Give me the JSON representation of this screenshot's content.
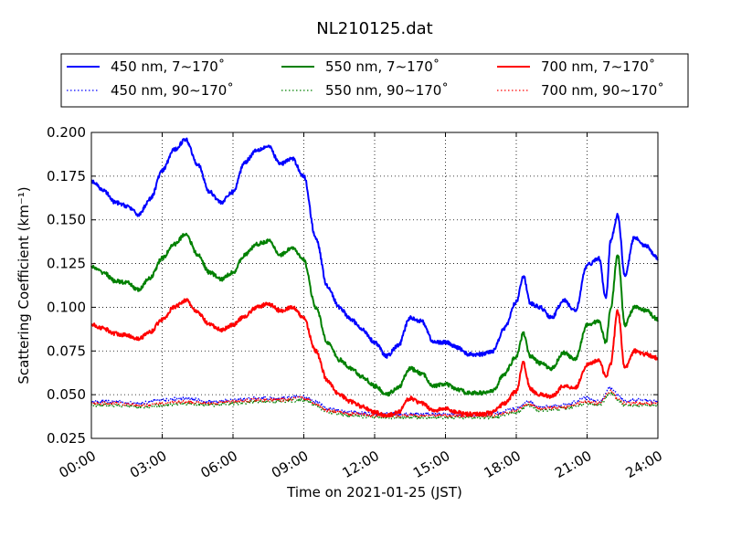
{
  "chart_data": {
    "type": "line",
    "title": "NL210125.dat",
    "xlabel": "Time on 2021-01-25 (JST)",
    "ylabel": "Scattering Coefficient (km⁻¹)",
    "xlim": [
      0,
      24
    ],
    "ylim": [
      0.025,
      0.2
    ],
    "xticks": [
      0,
      3,
      6,
      9,
      12,
      15,
      18,
      21,
      24
    ],
    "xtick_labels": [
      "00:00",
      "03:00",
      "06:00",
      "09:00",
      "12:00",
      "15:00",
      "18:00",
      "21:00",
      "24:00"
    ],
    "yticks": [
      0.025,
      0.05,
      0.075,
      0.1,
      0.125,
      0.15,
      0.175,
      0.2
    ],
    "ytick_labels": [
      "0.025",
      "0.050",
      "0.075",
      "0.100",
      "0.125",
      "0.150",
      "0.175",
      "0.200"
    ],
    "grid": true,
    "legend_position": "top",
    "series": [
      {
        "name": "450 nm, 7∼170˚",
        "color": "#0000ff",
        "style": "solid",
        "x": [
          0,
          0.5,
          1,
          1.5,
          2,
          2.5,
          3,
          3.5,
          4,
          4.5,
          5,
          5.5,
          6,
          6.5,
          7,
          7.5,
          8,
          8.5,
          9,
          9.5,
          10,
          10.5,
          11,
          11.5,
          12,
          12.5,
          13,
          13.5,
          14,
          14.5,
          15,
          15.5,
          16,
          16.5,
          17,
          17.5,
          18,
          18.3,
          18.6,
          19,
          19.5,
          20,
          20.5,
          21,
          21.5,
          21.8,
          22,
          22.3,
          22.6,
          23,
          23.5,
          24
        ],
        "y": [
          0.172,
          0.167,
          0.16,
          0.158,
          0.153,
          0.162,
          0.178,
          0.19,
          0.196,
          0.182,
          0.166,
          0.16,
          0.166,
          0.183,
          0.19,
          0.192,
          0.182,
          0.185,
          0.175,
          0.14,
          0.112,
          0.1,
          0.093,
          0.087,
          0.08,
          0.072,
          0.078,
          0.094,
          0.092,
          0.08,
          0.08,
          0.077,
          0.073,
          0.073,
          0.075,
          0.088,
          0.103,
          0.118,
          0.102,
          0.1,
          0.094,
          0.104,
          0.098,
          0.124,
          0.128,
          0.105,
          0.138,
          0.153,
          0.118,
          0.14,
          0.135,
          0.128
        ]
      },
      {
        "name": "450 nm, 90∼170˚",
        "color": "#0000ff",
        "style": "dotted",
        "x": [
          0,
          1,
          2,
          3,
          4,
          5,
          6,
          7,
          8,
          9,
          9.5,
          10,
          11,
          12,
          13,
          14,
          15,
          16,
          17,
          18,
          18.5,
          19,
          20,
          21,
          21.5,
          22,
          22.3,
          22.6,
          23,
          24
        ],
        "y": [
          0.046,
          0.046,
          0.045,
          0.047,
          0.048,
          0.046,
          0.047,
          0.048,
          0.048,
          0.049,
          0.046,
          0.042,
          0.04,
          0.039,
          0.039,
          0.039,
          0.039,
          0.038,
          0.039,
          0.042,
          0.046,
          0.043,
          0.044,
          0.048,
          0.046,
          0.054,
          0.05,
          0.046,
          0.047,
          0.046
        ]
      },
      {
        "name": "550 nm, 7∼170˚",
        "color": "#008000",
        "style": "solid",
        "x": [
          0,
          0.5,
          1,
          1.5,
          2,
          2.5,
          3,
          3.5,
          4,
          4.5,
          5,
          5.5,
          6,
          6.5,
          7,
          7.5,
          8,
          8.5,
          9,
          9.5,
          10,
          10.5,
          11,
          11.5,
          12,
          12.5,
          13,
          13.5,
          14,
          14.5,
          15,
          15.5,
          16,
          16.5,
          17,
          17.5,
          18,
          18.3,
          18.6,
          19,
          19.5,
          20,
          20.5,
          21,
          21.5,
          21.8,
          22,
          22.3,
          22.6,
          23,
          23.5,
          24
        ],
        "y": [
          0.123,
          0.12,
          0.115,
          0.114,
          0.11,
          0.117,
          0.128,
          0.136,
          0.142,
          0.13,
          0.12,
          0.116,
          0.12,
          0.13,
          0.136,
          0.138,
          0.13,
          0.134,
          0.127,
          0.1,
          0.08,
          0.07,
          0.065,
          0.06,
          0.055,
          0.05,
          0.054,
          0.065,
          0.062,
          0.055,
          0.056,
          0.053,
          0.051,
          0.051,
          0.052,
          0.062,
          0.072,
          0.085,
          0.072,
          0.068,
          0.065,
          0.074,
          0.07,
          0.09,
          0.092,
          0.08,
          0.1,
          0.13,
          0.09,
          0.1,
          0.098,
          0.093
        ]
      },
      {
        "name": "550 nm, 90∼170˚",
        "color": "#008000",
        "style": "dotted",
        "x": [
          0,
          1,
          2,
          3,
          4,
          5,
          6,
          7,
          8,
          9,
          9.5,
          10,
          11,
          12,
          13,
          14,
          15,
          16,
          17,
          18,
          18.5,
          19,
          20,
          21,
          21.5,
          22,
          22.3,
          22.6,
          23,
          24
        ],
        "y": [
          0.044,
          0.044,
          0.043,
          0.044,
          0.045,
          0.044,
          0.045,
          0.046,
          0.046,
          0.047,
          0.044,
          0.04,
          0.038,
          0.037,
          0.037,
          0.037,
          0.037,
          0.037,
          0.037,
          0.04,
          0.044,
          0.041,
          0.042,
          0.045,
          0.044,
          0.051,
          0.047,
          0.044,
          0.044,
          0.044
        ]
      },
      {
        "name": "700 nm, 7∼170˚",
        "color": "#ff0000",
        "style": "solid",
        "x": [
          0,
          0.5,
          1,
          1.5,
          2,
          2.5,
          3,
          3.5,
          4,
          4.5,
          5,
          5.5,
          6,
          6.5,
          7,
          7.5,
          8,
          8.5,
          9,
          9.5,
          10,
          10.5,
          11,
          11.5,
          12,
          12.5,
          13,
          13.5,
          14,
          14.5,
          15,
          15.5,
          16,
          16.5,
          17,
          17.5,
          18,
          18.3,
          18.6,
          19,
          19.5,
          20,
          20.5,
          21,
          21.5,
          21.8,
          22,
          22.3,
          22.6,
          23,
          23.5,
          24
        ],
        "y": [
          0.09,
          0.088,
          0.085,
          0.084,
          0.082,
          0.086,
          0.093,
          0.1,
          0.104,
          0.097,
          0.09,
          0.087,
          0.09,
          0.095,
          0.1,
          0.102,
          0.098,
          0.1,
          0.094,
          0.075,
          0.058,
          0.05,
          0.046,
          0.043,
          0.04,
          0.038,
          0.04,
          0.048,
          0.045,
          0.041,
          0.042,
          0.04,
          0.039,
          0.039,
          0.04,
          0.045,
          0.052,
          0.068,
          0.053,
          0.05,
          0.049,
          0.055,
          0.054,
          0.067,
          0.07,
          0.06,
          0.068,
          0.098,
          0.065,
          0.075,
          0.073,
          0.071
        ]
      },
      {
        "name": "700 nm, 90∼170˚",
        "color": "#ff0000",
        "style": "dotted",
        "x": [
          0,
          1,
          2,
          3,
          4,
          5,
          6,
          7,
          8,
          9,
          9.5,
          10,
          11,
          12,
          13,
          14,
          15,
          16,
          17,
          18,
          18.5,
          19,
          20,
          21,
          21.5,
          22,
          22.3,
          22.6,
          23,
          24
        ],
        "y": [
          0.045,
          0.045,
          0.044,
          0.045,
          0.046,
          0.045,
          0.046,
          0.047,
          0.047,
          0.048,
          0.045,
          0.041,
          0.039,
          0.038,
          0.038,
          0.038,
          0.038,
          0.038,
          0.038,
          0.041,
          0.045,
          0.042,
          0.043,
          0.046,
          0.045,
          0.052,
          0.048,
          0.045,
          0.045,
          0.045
        ]
      }
    ]
  }
}
